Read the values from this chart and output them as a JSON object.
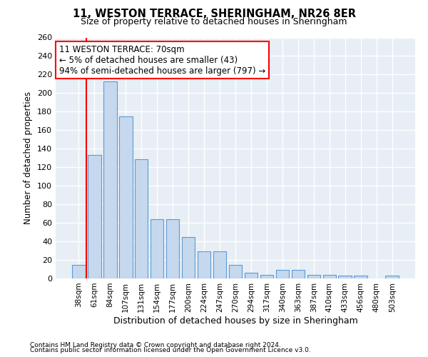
{
  "title": "11, WESTON TERRACE, SHERINGHAM, NR26 8ER",
  "subtitle": "Size of property relative to detached houses in Sheringham",
  "xlabel": "Distribution of detached houses by size in Sheringham",
  "ylabel": "Number of detached properties",
  "categories": [
    "38sqm",
    "61sqm",
    "84sqm",
    "107sqm",
    "131sqm",
    "154sqm",
    "177sqm",
    "200sqm",
    "224sqm",
    "247sqm",
    "270sqm",
    "294sqm",
    "317sqm",
    "340sqm",
    "363sqm",
    "387sqm",
    "410sqm",
    "433sqm",
    "456sqm",
    "480sqm",
    "503sqm"
  ],
  "values": [
    15,
    133,
    213,
    175,
    129,
    64,
    64,
    45,
    29,
    29,
    15,
    6,
    4,
    9,
    9,
    4,
    4,
    3,
    3,
    0,
    3
  ],
  "bar_color": "#c5d8ed",
  "bar_edge_color": "#5b9bd5",
  "bg_color": "#e8eef5",
  "grid_color": "#ffffff",
  "annotation_line1": "11 WESTON TERRACE: 70sqm",
  "annotation_line2": "← 5% of detached houses are smaller (43)",
  "annotation_line3": "94% of semi-detached houses are larger (797) →",
  "red_line_x": 0.5,
  "ylim": [
    0,
    260
  ],
  "yticks": [
    0,
    20,
    40,
    60,
    80,
    100,
    120,
    140,
    160,
    180,
    200,
    220,
    240,
    260
  ],
  "footer1": "Contains HM Land Registry data © Crown copyright and database right 2024.",
  "footer2": "Contains public sector information licensed under the Open Government Licence v3.0."
}
